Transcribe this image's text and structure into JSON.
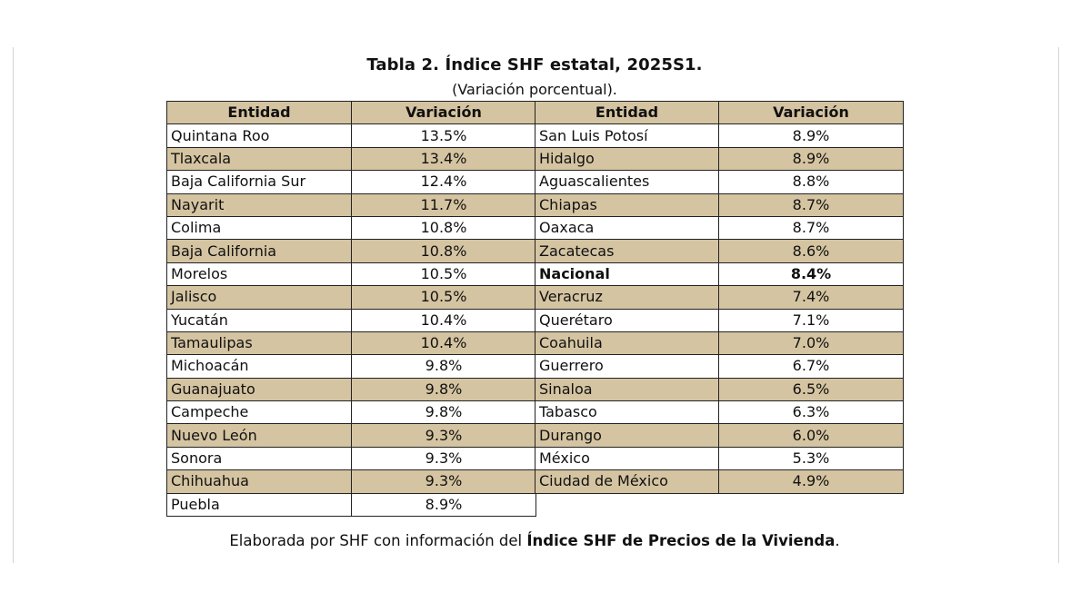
{
  "title": "Tabla 2. Índice SHF estatal, 2025S1.",
  "subtitle": "(Variación porcentual).",
  "headers": {
    "entity": "Entidad",
    "variation": "Variación"
  },
  "colors": {
    "header_and_shaded_rows": "#d5c4a1",
    "plain_rows": "#ffffff",
    "border": "#222222"
  },
  "left_rows": [
    {
      "entity": "Quintana Roo",
      "variation": "13.5%"
    },
    {
      "entity": "Tlaxcala",
      "variation": "13.4%"
    },
    {
      "entity": "Baja California Sur",
      "variation": "12.4%"
    },
    {
      "entity": "Nayarit",
      "variation": "11.7%"
    },
    {
      "entity": "Colima",
      "variation": "10.8%"
    },
    {
      "entity": "Baja California",
      "variation": "10.8%"
    },
    {
      "entity": "Morelos",
      "variation": "10.5%"
    },
    {
      "entity": "Jalisco",
      "variation": "10.5%"
    },
    {
      "entity": "Yucatán",
      "variation": "10.4%"
    },
    {
      "entity": "Tamaulipas",
      "variation": "10.4%"
    },
    {
      "entity": "Michoacán",
      "variation": "9.8%"
    },
    {
      "entity": "Guanajuato",
      "variation": "9.8%"
    },
    {
      "entity": "Campeche",
      "variation": "9.8%"
    },
    {
      "entity": "Nuevo León",
      "variation": "9.3%"
    },
    {
      "entity": "Sonora",
      "variation": "9.3%"
    },
    {
      "entity": "Chihuahua",
      "variation": "9.3%"
    },
    {
      "entity": "Puebla",
      "variation": "8.9%"
    }
  ],
  "right_rows": [
    {
      "entity": "San Luis Potosí",
      "variation": "8.9%"
    },
    {
      "entity": "Hidalgo",
      "variation": "8.9%"
    },
    {
      "entity": "Aguascalientes",
      "variation": "8.8%"
    },
    {
      "entity": "Chiapas",
      "variation": "8.7%"
    },
    {
      "entity": "Oaxaca",
      "variation": "8.7%"
    },
    {
      "entity": "Zacatecas",
      "variation": "8.6%"
    },
    {
      "entity": "Nacional",
      "variation": "8.4%"
    },
    {
      "entity": "Veracruz",
      "variation": "7.4%"
    },
    {
      "entity": "Querétaro",
      "variation": "7.1%"
    },
    {
      "entity": "Coahuila",
      "variation": "7.0%"
    },
    {
      "entity": "Guerrero",
      "variation": "6.7%"
    },
    {
      "entity": "Sinaloa",
      "variation": "6.5%"
    },
    {
      "entity": "Tabasco",
      "variation": "6.3%"
    },
    {
      "entity": "Durango",
      "variation": "6.0%"
    },
    {
      "entity": "México",
      "variation": "5.3%"
    },
    {
      "entity": "Ciudad de México",
      "variation": "4.9%"
    }
  ],
  "footer": {
    "prefix": "Elaborada por SHF con información del ",
    "source": "Índice SHF de Precios de la Vivienda",
    "suffix": "."
  }
}
